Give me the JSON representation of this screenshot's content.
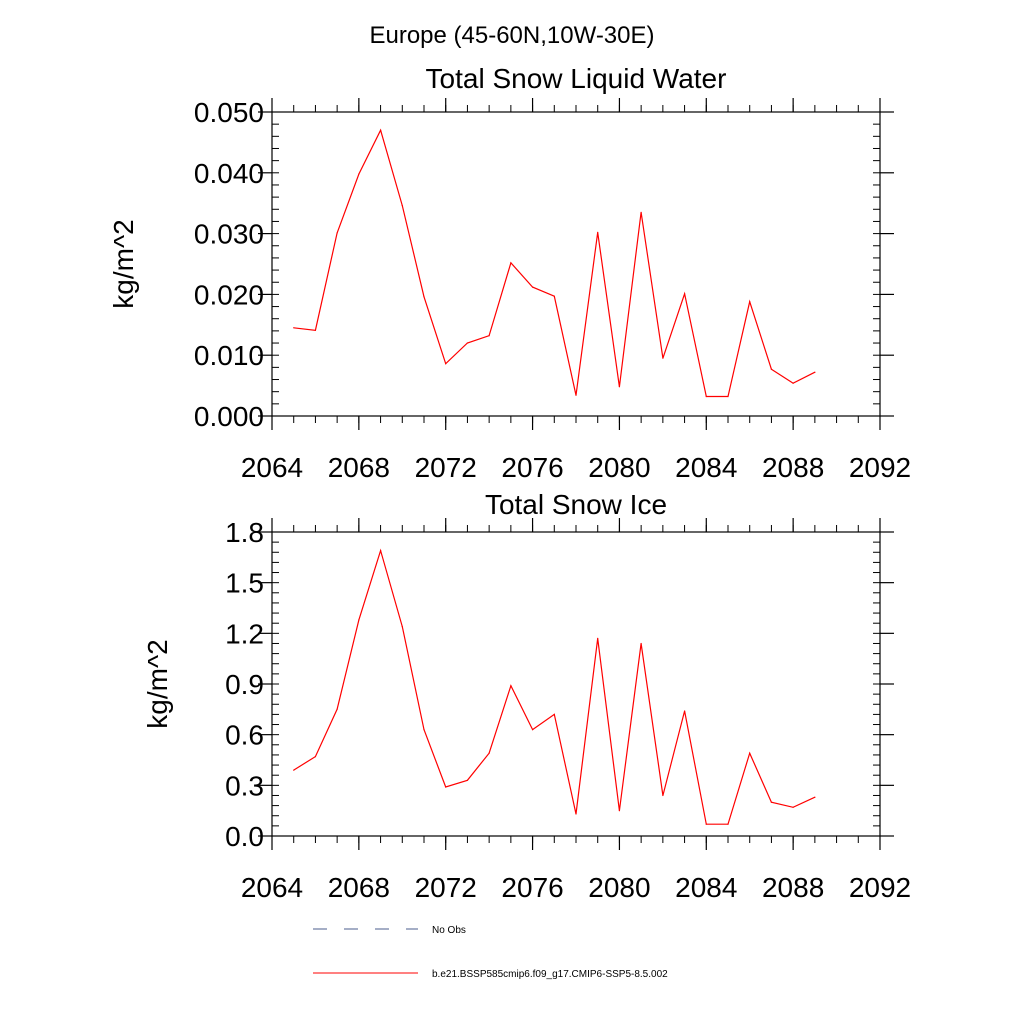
{
  "figure": {
    "title": "Europe (45-60N,10W-30E)"
  },
  "chart_data": [
    {
      "type": "line",
      "title": "Total Snow Liquid Water",
      "xlabel": "",
      "ylabel": "kg/m^2",
      "xlim": [
        2064,
        2092
      ],
      "ylim": [
        0,
        0.05
      ],
      "xticks": [
        2064,
        2068,
        2072,
        2076,
        2080,
        2084,
        2088,
        2092
      ],
      "xtick_labels": [
        "2064",
        "2068",
        "2072",
        "2076",
        "2080",
        "2084",
        "2088",
        "2092"
      ],
      "yticks": [
        0,
        0.01,
        0.02,
        0.03,
        0.04,
        0.05
      ],
      "ytick_labels": [
        "0.000",
        "0.010",
        "0.020",
        "0.030",
        "0.040",
        "0.050"
      ],
      "y_minor_step": 0.002,
      "x_minor_step": 1,
      "grid": false,
      "series": [
        {
          "name": "b.e21.BSSP585cmip6.f09_g17.CMIP6-SSP5-8.5.002",
          "color": "#ff0000",
          "x": [
            2065,
            2066,
            2067,
            2068,
            2069,
            2070,
            2071,
            2072,
            2073,
            2074,
            2075,
            2076,
            2077,
            2078,
            2079,
            2080,
            2081,
            2082,
            2083,
            2084,
            2085,
            2086,
            2087,
            2088,
            2089
          ],
          "values": [
            0.0145,
            0.0141,
            0.0301,
            0.0398,
            0.047,
            0.0346,
            0.0196,
            0.0086,
            0.012,
            0.0132,
            0.0252,
            0.0212,
            0.0197,
            0.0034,
            0.0302,
            0.0048,
            0.0335,
            0.0095,
            0.0201,
            0.0032,
            0.0032,
            0.0188,
            0.0077,
            0.0054,
            0.0072
          ]
        }
      ]
    },
    {
      "type": "line",
      "title": "Total Snow Ice",
      "xlabel": "",
      "ylabel": "kg/m^2",
      "xlim": [
        2064,
        2092
      ],
      "ylim": [
        0,
        1.8
      ],
      "xticks": [
        2064,
        2068,
        2072,
        2076,
        2080,
        2084,
        2088,
        2092
      ],
      "xtick_labels": [
        "2064",
        "2068",
        "2072",
        "2076",
        "2080",
        "2084",
        "2088",
        "2092"
      ],
      "yticks": [
        0,
        0.3,
        0.6,
        0.9,
        1.2,
        1.5,
        1.8
      ],
      "ytick_labels": [
        "0.0",
        "0.3",
        "0.6",
        "0.9",
        "1.2",
        "1.5",
        "1.8"
      ],
      "y_minor_step": 0.06,
      "x_minor_step": 1,
      "grid": false,
      "series": [
        {
          "name": "b.e21.BSSP585cmip6.f09_g17.CMIP6-SSP5-8.5.002",
          "color": "#ff0000",
          "x": [
            2065,
            2066,
            2067,
            2068,
            2069,
            2070,
            2071,
            2072,
            2073,
            2074,
            2075,
            2076,
            2077,
            2078,
            2079,
            2080,
            2081,
            2082,
            2083,
            2084,
            2085,
            2086,
            2087,
            2088,
            2089
          ],
          "values": [
            0.39,
            0.47,
            0.75,
            1.28,
            1.69,
            1.24,
            0.63,
            0.29,
            0.33,
            0.49,
            0.89,
            0.63,
            0.72,
            0.13,
            1.17,
            0.15,
            1.14,
            0.24,
            0.74,
            0.07,
            0.07,
            0.49,
            0.2,
            0.17,
            0.23
          ]
        }
      ]
    }
  ],
  "legend": {
    "placement": "bottom",
    "items": [
      {
        "label": "No Obs",
        "color": "#4b5c8c",
        "style": "dashed"
      },
      {
        "label": "b.e21.BSSP585cmip6.f09_g17.CMIP6-SSP5-8.5.002",
        "color": "#ff0000",
        "style": "solid"
      }
    ]
  }
}
